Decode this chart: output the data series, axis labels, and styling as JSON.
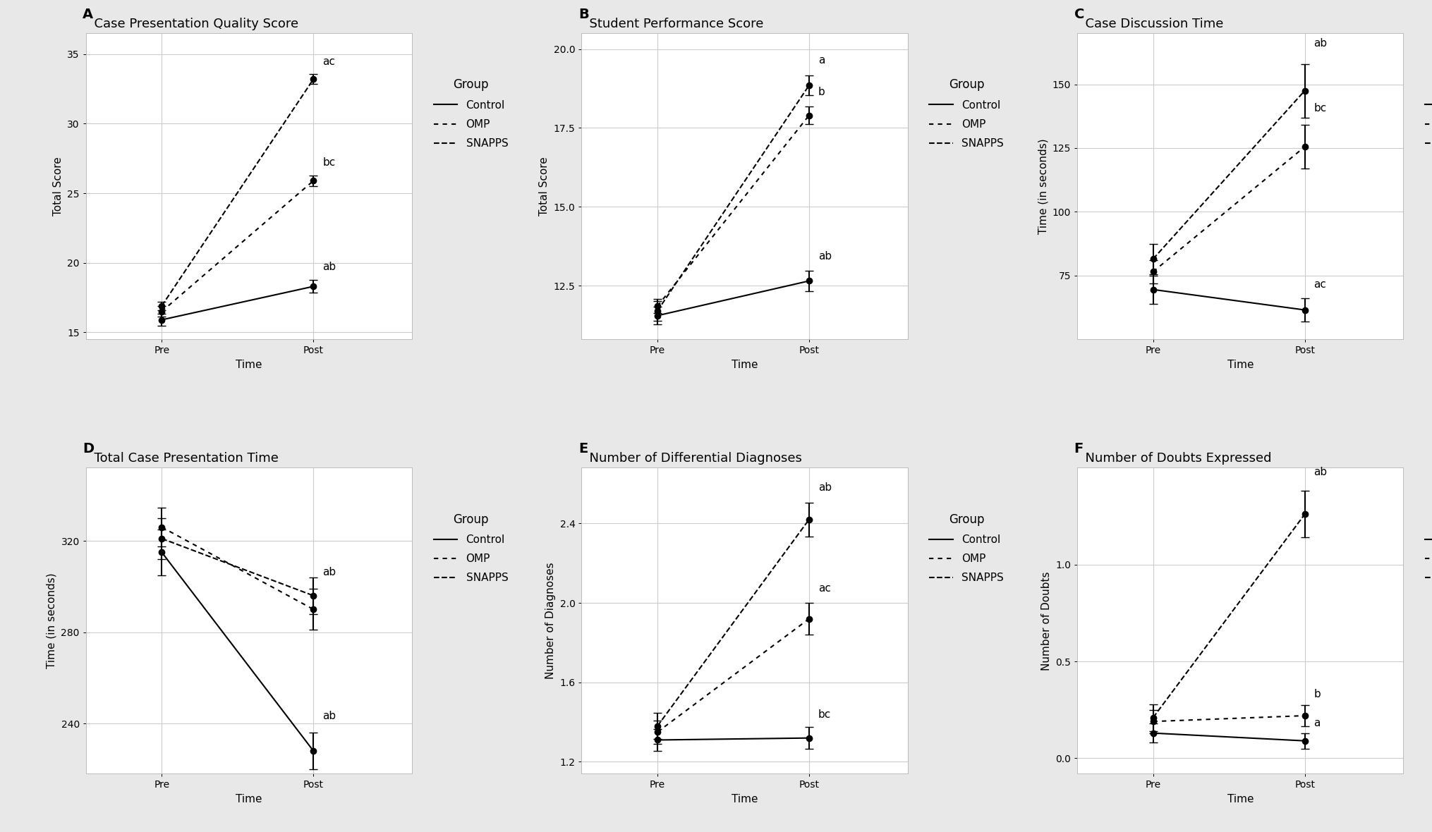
{
  "panels": [
    {
      "label": "A",
      "title": "Case Presentation Quality Score",
      "ylabel": "Total Score",
      "xlabel": "Time",
      "ylim": [
        14.5,
        36.5
      ],
      "yticks": [
        15,
        20,
        25,
        30,
        35
      ],
      "groups": {
        "Control": {
          "pre_mean": 15.9,
          "pre_err": 0.45,
          "post_mean": 18.3,
          "post_err": 0.45,
          "post_label": "ab"
        },
        "OMP": {
          "pre_mean": 16.5,
          "pre_err": 0.38,
          "post_mean": 25.9,
          "post_err": 0.38,
          "post_label": "bc"
        },
        "SNAPPS": {
          "pre_mean": 16.9,
          "pre_err": 0.32,
          "post_mean": 33.2,
          "post_err": 0.35,
          "post_label": "ac"
        }
      }
    },
    {
      "label": "B",
      "title": "Student Performance Score",
      "ylabel": "Total Score",
      "xlabel": "Time",
      "ylim": [
        10.8,
        20.5
      ],
      "yticks": [
        12.5,
        15.0,
        17.5,
        20.0
      ],
      "groups": {
        "Control": {
          "pre_mean": 11.55,
          "pre_err": 0.28,
          "post_mean": 12.65,
          "post_err": 0.32,
          "post_label": "ab"
        },
        "OMP": {
          "pre_mean": 11.85,
          "pre_err": 0.22,
          "post_mean": 17.9,
          "post_err": 0.28,
          "post_label": "b"
        },
        "SNAPPS": {
          "pre_mean": 11.7,
          "pre_err": 0.32,
          "post_mean": 18.85,
          "post_err": 0.32,
          "post_label": "a"
        }
      }
    },
    {
      "label": "C",
      "title": "Case Discussion Time",
      "ylabel": "Time (in seconds)",
      "xlabel": "Time",
      "ylim": [
        50,
        170
      ],
      "yticks": [
        75,
        100,
        125,
        150
      ],
      "groups": {
        "Control": {
          "pre_mean": 69.5,
          "pre_err": 5.5,
          "post_mean": 61.5,
          "post_err": 4.5,
          "post_label": "ac"
        },
        "OMP": {
          "pre_mean": 76.5,
          "pre_err": 4.5,
          "post_mean": 125.5,
          "post_err": 8.5,
          "post_label": "bc"
        },
        "SNAPPS": {
          "pre_mean": 81.5,
          "pre_err": 6.0,
          "post_mean": 147.5,
          "post_err": 10.5,
          "post_label": "ab"
        }
      }
    },
    {
      "label": "D",
      "title": "Total Case Presentation Time",
      "ylabel": "Time (in seconds)",
      "xlabel": "Time",
      "ylim": [
        218,
        352
      ],
      "yticks": [
        240,
        280,
        320
      ],
      "groups": {
        "Control": {
          "pre_mean": 315.0,
          "pre_err": 10.0,
          "post_mean": 228.0,
          "post_err": 8.0,
          "post_label": "ab"
        },
        "OMP": {
          "pre_mean": 326.0,
          "pre_err": 8.5,
          "post_mean": 290.0,
          "post_err": 9.0,
          "post_label": "ab"
        },
        "SNAPPS": {
          "pre_mean": 321.0,
          "pre_err": 9.0,
          "post_mean": 296.0,
          "post_err": 8.0,
          "post_label": ""
        }
      }
    },
    {
      "label": "E",
      "title": "Number of Differential Diagnoses",
      "ylabel": "Number of Diagnoses",
      "xlabel": "Time",
      "ylim": [
        1.14,
        2.68
      ],
      "yticks": [
        1.2,
        1.6,
        2.0,
        2.4
      ],
      "groups": {
        "Control": {
          "pre_mean": 1.31,
          "pre_err": 0.055,
          "post_mean": 1.32,
          "post_err": 0.055,
          "post_label": "bc"
        },
        "OMP": {
          "pre_mean": 1.35,
          "pre_err": 0.058,
          "post_mean": 1.92,
          "post_err": 0.08,
          "post_label": "ac"
        },
        "SNAPPS": {
          "pre_mean": 1.38,
          "pre_err": 0.065,
          "post_mean": 2.42,
          "post_err": 0.085,
          "post_label": "ab"
        }
      }
    },
    {
      "label": "F",
      "title": "Number of Doubts Expressed",
      "ylabel": "Number of Doubts",
      "xlabel": "Time",
      "ylim": [
        -0.08,
        1.5
      ],
      "yticks": [
        0.0,
        0.5,
        1.0
      ],
      "groups": {
        "Control": {
          "pre_mean": 0.13,
          "pre_err": 0.05,
          "post_mean": 0.09,
          "post_err": 0.04,
          "post_label": "a"
        },
        "OMP": {
          "pre_mean": 0.19,
          "pre_err": 0.06,
          "post_mean": 0.22,
          "post_err": 0.055,
          "post_label": "b"
        },
        "SNAPPS": {
          "pre_mean": 0.21,
          "pre_err": 0.07,
          "post_mean": 1.26,
          "post_err": 0.12,
          "post_label": "ab"
        }
      }
    }
  ],
  "group_order": [
    "Control",
    "OMP",
    "SNAPPS"
  ],
  "color": "#000000",
  "bg_color": "#e8e8e8",
  "plot_bg": "#ffffff",
  "marker": "o",
  "markersize": 6,
  "linewidth": 1.5,
  "capsize": 4,
  "elinewidth": 1.5,
  "legend_title": "Group",
  "font_size": 11,
  "title_font_size": 13,
  "label_font_size": 11,
  "tick_font_size": 10,
  "panel_label_font_size": 14,
  "annotation_font_size": 11,
  "grid_color": "#cccccc",
  "grid_linewidth": 0.8,
  "post_label_offsets": {
    "A": {
      "Control": 0.55,
      "OMP": 0.55,
      "SNAPPS": 0.55
    },
    "B": {
      "Control": 0.3,
      "OMP": 0.3,
      "SNAPPS": 0.3
    },
    "C": {
      "Control": 3.5,
      "OMP": 4.5,
      "SNAPPS": 6.0
    },
    "D": {
      "Control": 5.0,
      "OMP": 5.0,
      "SNAPPS": 5.0
    },
    "E": {
      "Control": 0.035,
      "OMP": 0.045,
      "SNAPPS": 0.05
    },
    "F": {
      "Control": 0.025,
      "OMP": 0.03,
      "SNAPPS": 0.07
    }
  }
}
